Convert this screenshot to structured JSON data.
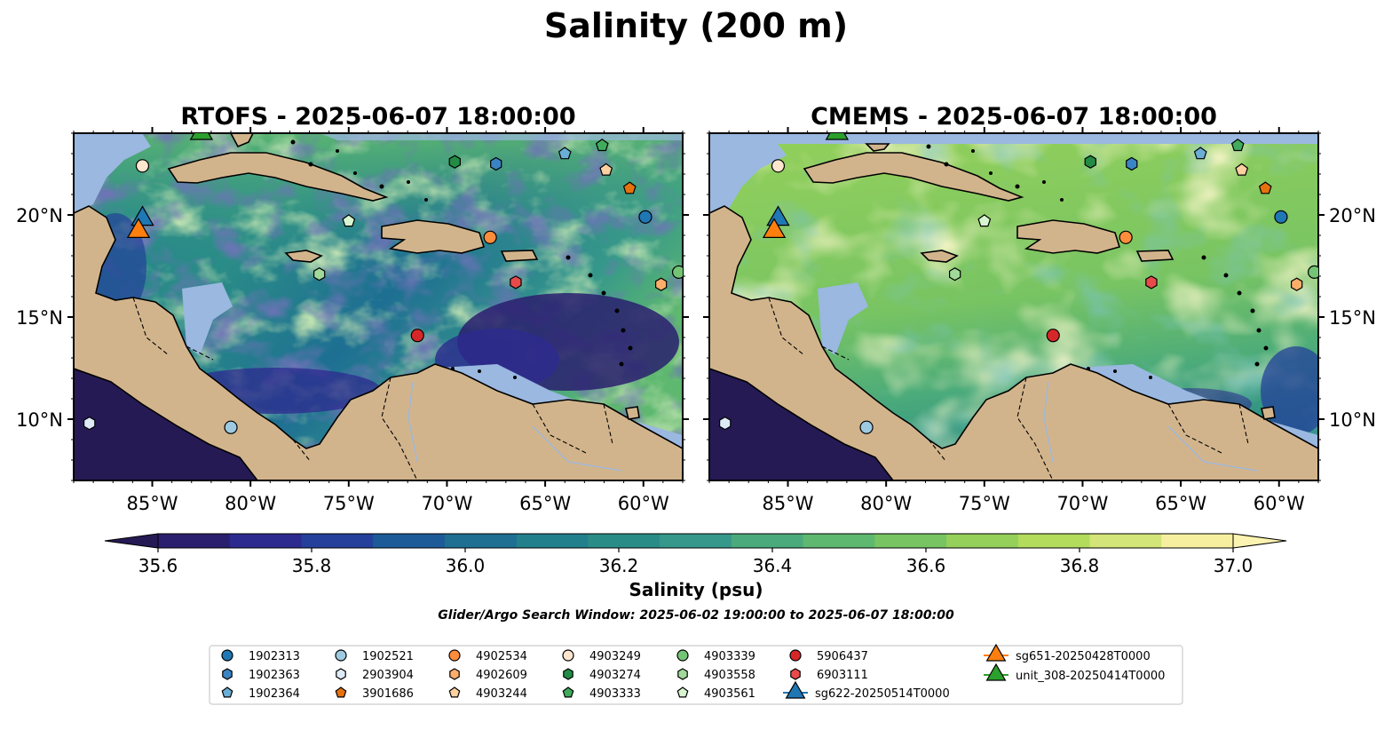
{
  "suptitle": "Salinity (200 m)",
  "panels": [
    {
      "title": "RTOFS - 2025-06-07 18:00:00"
    },
    {
      "title": "CMEMS - 2025-06-07 18:00:00"
    }
  ],
  "map_extent": {
    "lon": [
      -89,
      -58
    ],
    "lat": [
      7,
      24
    ]
  },
  "lon_ticks": [
    {
      "value": -85,
      "label": "85°W"
    },
    {
      "value": -80,
      "label": "80°W"
    },
    {
      "value": -75,
      "label": "75°W"
    },
    {
      "value": -70,
      "label": "70°W"
    },
    {
      "value": -65,
      "label": "65°W"
    },
    {
      "value": -60,
      "label": "60°W"
    }
  ],
  "lat_ticks": [
    {
      "value": 20,
      "label": "20°N"
    },
    {
      "value": 15,
      "label": "15°N"
    },
    {
      "value": 10,
      "label": "10°N"
    }
  ],
  "colorbar": {
    "label": "Salinity (psu)",
    "range": [
      35.6,
      37.0
    ],
    "ticks": [
      {
        "value": 35.6,
        "label": "35.6"
      },
      {
        "value": 35.8,
        "label": "35.8"
      },
      {
        "value": 36.0,
        "label": "36.0"
      },
      {
        "value": 36.2,
        "label": "36.2"
      },
      {
        "value": 36.4,
        "label": "36.4"
      },
      {
        "value": 36.6,
        "label": "36.6"
      },
      {
        "value": 36.8,
        "label": "36.8"
      },
      {
        "value": 37.0,
        "label": "37.0"
      }
    ],
    "colors": [
      "#2a1f6e",
      "#2d2a8f",
      "#24409a",
      "#1d5b98",
      "#1e6f92",
      "#227f8c",
      "#2a8c87",
      "#36988a",
      "#4aaa7b",
      "#5eb86f",
      "#78c463",
      "#94d05a",
      "#b3dc5c",
      "#d3e478",
      "#f6efa0"
    ],
    "under_color": "#261a55",
    "over_color": "#fbf3b0"
  },
  "search_window": "Glider/Argo Search Window: 2025-06-02 19:00:00 to 2025-06-07 18:00:00",
  "colors": {
    "land": "#d2b48c",
    "shallow": "#9ab8e0",
    "deep_low": "#261a55"
  },
  "legend": {
    "columns": [
      [
        {
          "label": "1902313",
          "marker": "circle",
          "color": "#1f77b4"
        },
        {
          "label": "1902363",
          "marker": "hexagon",
          "color": "#3a84c4"
        },
        {
          "label": "1902364",
          "marker": "pentagon",
          "color": "#6aaed6"
        }
      ],
      [
        {
          "label": "1902521",
          "marker": "circle",
          "color": "#9ecae1"
        },
        {
          "label": "2903904",
          "marker": "hexagon",
          "color": "#deebf7"
        },
        {
          "label": "3901686",
          "marker": "pentagon",
          "color": "#e6720e"
        }
      ],
      [
        {
          "label": "4902534",
          "marker": "circle",
          "color": "#fd8d3c"
        },
        {
          "label": "4902609",
          "marker": "hexagon",
          "color": "#fdae6b"
        },
        {
          "label": "4903244",
          "marker": "pentagon",
          "color": "#fdd0a2"
        }
      ],
      [
        {
          "label": "4903249",
          "marker": "circle",
          "color": "#fee6ce"
        },
        {
          "label": "4903274",
          "marker": "hexagon",
          "color": "#238b45"
        },
        {
          "label": "4903333",
          "marker": "pentagon",
          "color": "#41ab5d"
        }
      ],
      [
        {
          "label": "4903339",
          "marker": "circle",
          "color": "#74c476"
        },
        {
          "label": "4903558",
          "marker": "hexagon",
          "color": "#a1d99b"
        },
        {
          "label": "4903561",
          "marker": "pentagon",
          "color": "#d7f5d0"
        }
      ],
      [
        {
          "label": "5906437",
          "marker": "circle",
          "color": "#d62728"
        },
        {
          "label": "6903111",
          "marker": "hexagon",
          "color": "#e84a4a"
        },
        {
          "label": "sg622-20250514T0000",
          "marker": "triangle",
          "color": "#1f77b4"
        }
      ],
      [
        {
          "label": "sg651-20250428T0000",
          "marker": "triangle",
          "color": "#ff7f0e"
        },
        {
          "label": "unit_308-20250414T0000",
          "marker": "triangle",
          "color": "#2ca02c"
        }
      ]
    ]
  },
  "markers": [
    {
      "id": "1902313",
      "lon": -59.9,
      "lat": 19.9,
      "shape": "circle",
      "color": "#1f77b4"
    },
    {
      "id": "1902363",
      "lon": -67.5,
      "lat": 22.5,
      "shape": "hexagon",
      "color": "#3a84c4"
    },
    {
      "id": "1902364",
      "lon": -64.0,
      "lat": 23.0,
      "shape": "pentagon",
      "color": "#6aaed6"
    },
    {
      "id": "1902521",
      "lon": -81.0,
      "lat": 9.6,
      "shape": "circle",
      "color": "#9ecae1"
    },
    {
      "id": "2903904",
      "lon": -88.2,
      "lat": 9.8,
      "shape": "hexagon",
      "color": "#deebf7"
    },
    {
      "id": "3901686",
      "lon": -60.7,
      "lat": 21.3,
      "shape": "pentagon",
      "color": "#e6720e"
    },
    {
      "id": "4902534",
      "lon": -67.8,
      "lat": 18.9,
      "shape": "circle",
      "color": "#fd8d3c"
    },
    {
      "id": "4902609",
      "lon": -59.1,
      "lat": 16.6,
      "shape": "hexagon",
      "color": "#fdae6b"
    },
    {
      "id": "4903244",
      "lon": -61.9,
      "lat": 22.2,
      "shape": "pentagon",
      "color": "#fdd0a2"
    },
    {
      "id": "4903249",
      "lon": -85.5,
      "lat": 22.4,
      "shape": "circle",
      "color": "#fee6ce"
    },
    {
      "id": "4903274",
      "lon": -69.6,
      "lat": 22.6,
      "shape": "hexagon",
      "color": "#238b45"
    },
    {
      "id": "4903333",
      "lon": -62.1,
      "lat": 23.4,
      "shape": "pentagon",
      "color": "#41ab5d"
    },
    {
      "id": "4903339",
      "lon": -58.2,
      "lat": 17.2,
      "shape": "circle",
      "color": "#74c476"
    },
    {
      "id": "4903558",
      "lon": -76.5,
      "lat": 17.1,
      "shape": "hexagon",
      "color": "#a1d99b"
    },
    {
      "id": "4903561",
      "lon": -75.0,
      "lat": 19.7,
      "shape": "pentagon",
      "color": "#d7f5d0"
    },
    {
      "id": "5906437",
      "lon": -71.5,
      "lat": 14.1,
      "shape": "circle",
      "color": "#d62728"
    },
    {
      "id": "6903111",
      "lon": -66.5,
      "lat": 16.7,
      "shape": "hexagon",
      "color": "#e84a4a"
    },
    {
      "id": "sg622-20250514T0000",
      "lon": -85.5,
      "lat": 19.8,
      "shape": "triangle",
      "color": "#1f77b4"
    },
    {
      "id": "sg651-20250428T0000",
      "lon": -85.7,
      "lat": 19.2,
      "shape": "triangle",
      "color": "#ff7f0e"
    },
    {
      "id": "unit_308-20250414T0000",
      "lon": -82.5,
      "lat": 24.0,
      "shape": "triangle",
      "color": "#2ca02c"
    }
  ]
}
